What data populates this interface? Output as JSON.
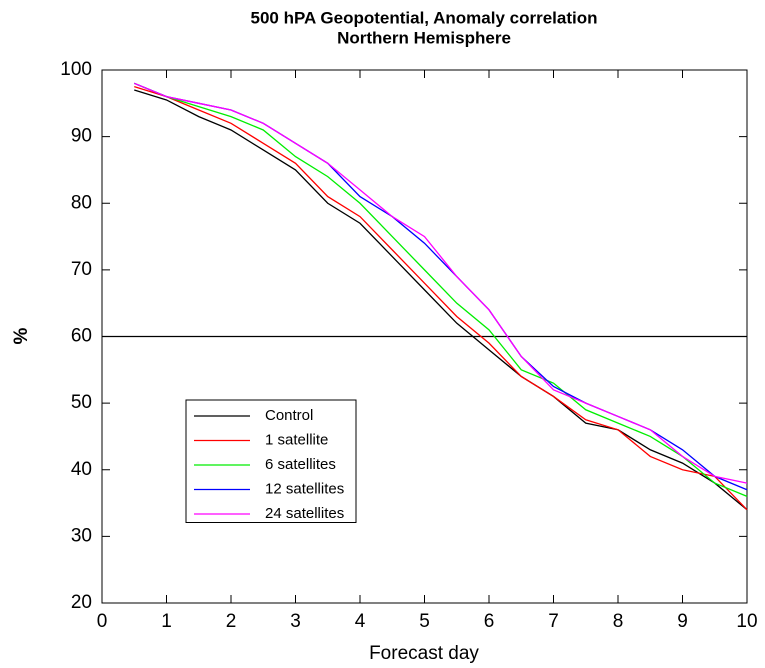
{
  "chart_data": {
    "type": "line",
    "title": "500 hPA Geopotential, Anomaly correlation",
    "subtitle": "Northern Hemisphere",
    "x_label": "Forecast day",
    "y_label": "%",
    "x": [
      0.5,
      1,
      1.5,
      2,
      2.5,
      3,
      3.5,
      4,
      4.5,
      5,
      5.5,
      6,
      6.5,
      7,
      7.5,
      8,
      8.5,
      9,
      9.5,
      10
    ],
    "series": [
      {
        "name": "Control",
        "color": "#000000",
        "values": [
          97,
          95.5,
          93,
          91,
          88,
          85,
          80,
          77,
          72,
          67,
          62,
          58,
          54,
          51,
          47,
          46,
          43,
          41,
          38,
          34
        ]
      },
      {
        "name": "1 satellite",
        "color": "#ff0000",
        "values": [
          97.5,
          96,
          94,
          92,
          89,
          86,
          81,
          78,
          73,
          68,
          63,
          59,
          54,
          51,
          47.5,
          46,
          42,
          40,
          39,
          34
        ]
      },
      {
        "name": "6 satellites",
        "color": "#00ee00",
        "values": [
          98,
          96,
          94.5,
          93,
          91,
          87,
          84,
          80,
          75,
          70,
          65,
          61,
          55,
          53,
          49,
          47,
          45,
          42,
          38,
          36
        ]
      },
      {
        "name": "12 satellites",
        "color": "#0000ff",
        "values": [
          98,
          96,
          95,
          94,
          92,
          89,
          86,
          81,
          78,
          74,
          69,
          64,
          57,
          52.5,
          50,
          48,
          46,
          43,
          39,
          37
        ]
      },
      {
        "name": "24 satellites",
        "color": "#ff00ff",
        "values": [
          98,
          96,
          95,
          94,
          92,
          89,
          86,
          82,
          78,
          75,
          69,
          64,
          57,
          52,
          50,
          48,
          46,
          42,
          39,
          38
        ]
      }
    ],
    "reference_line": 60,
    "xlim": [
      0,
      10
    ],
    "xticks": [
      0,
      1,
      2,
      3,
      4,
      5,
      6,
      7,
      8,
      9,
      10
    ],
    "ylim": [
      20,
      100
    ],
    "yticks": [
      20,
      30,
      40,
      50,
      60,
      70,
      80,
      90,
      100
    ]
  }
}
